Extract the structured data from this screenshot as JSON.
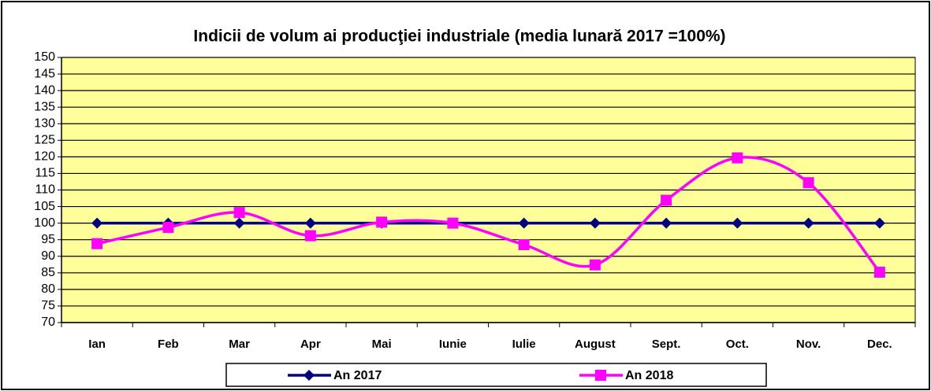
{
  "chart_data": {
    "type": "line",
    "title": "Indicii de volum ai producţiei industriale (media lunară 2017 =100%)",
    "categories": [
      "Ian",
      "Feb",
      "Mar",
      "Apr",
      "Mai",
      "Iunie",
      "Iulie",
      "August",
      "Sept.",
      "Oct.",
      "Nov.",
      "Dec."
    ],
    "series": [
      {
        "name": "An 2017",
        "color": "#000080",
        "marker": "diamond",
        "smooth": false,
        "values": [
          100,
          100,
          100,
          100,
          100,
          100,
          100,
          100,
          100,
          100,
          100,
          100
        ]
      },
      {
        "name": "An 2018",
        "color": "#ff00ff",
        "marker": "square",
        "smooth": true,
        "values": [
          93.8,
          98.7,
          103.2,
          96.2,
          100.3,
          100,
          93.5,
          87.4,
          106.9,
          119.7,
          112.2,
          85.2
        ]
      }
    ],
    "ylim": [
      70,
      150
    ],
    "yticks": [
      70,
      75,
      80,
      85,
      90,
      95,
      100,
      105,
      110,
      115,
      120,
      125,
      130,
      135,
      140,
      145,
      150
    ],
    "grid": true,
    "legend": "bottom",
    "plot_background": "#ffff99"
  }
}
